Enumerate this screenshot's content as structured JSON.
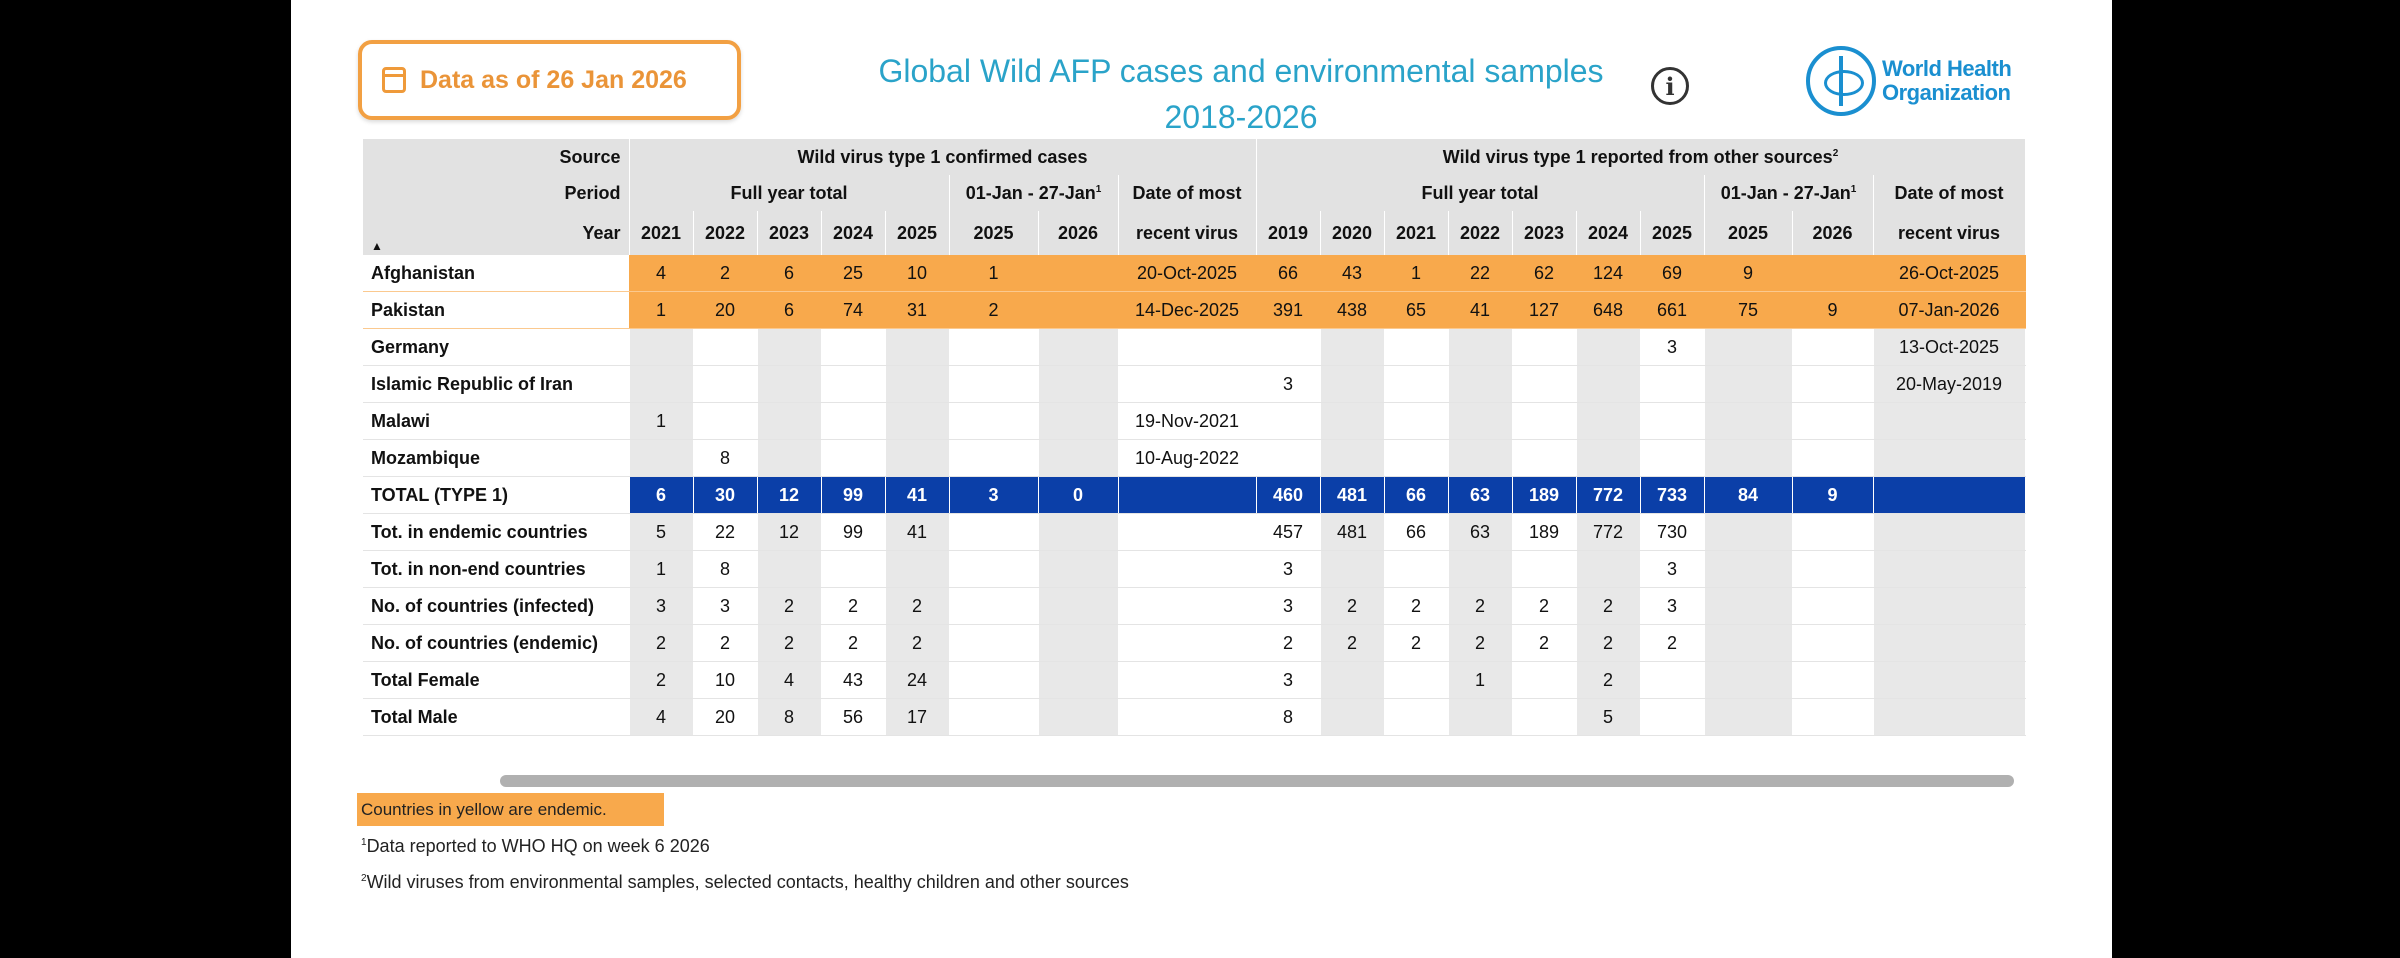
{
  "badge": {
    "icon": "calendar-icon",
    "label": "Data as of 26 Jan 2026"
  },
  "title": {
    "line1": "Global Wild AFP cases and environmental samples",
    "line2": "2018-2026"
  },
  "info_icon": "i",
  "logo": {
    "line1": "World Health",
    "line2": "Organization"
  },
  "header": {
    "source_label": "Source",
    "period_label": "Period",
    "year_label": "Year",
    "group1": "Wild virus type 1 confirmed cases",
    "group2": "Wild virus type 1 reported from other sources",
    "group2_sup": "2",
    "full_year": "Full year total",
    "ytd": "01-Jan - 27-Jan",
    "ytd_sup": "1",
    "date_line1": "Date of most",
    "date_line2": "recent virus",
    "sort_icon": "▲",
    "years": [
      "2021",
      "2022",
      "2023",
      "2024",
      "2025",
      "2025",
      "2026",
      "",
      "2019",
      "2020",
      "2021",
      "2022",
      "2023",
      "2024",
      "2025",
      "2025",
      "2026",
      ""
    ]
  },
  "rows": [
    {
      "label": "Afghanistan",
      "style": "endemic",
      "values": [
        "4",
        "2",
        "6",
        "25",
        "10",
        "1",
        "",
        "20-Oct-2025",
        "66",
        "43",
        "1",
        "22",
        "62",
        "124",
        "69",
        "9",
        "",
        "26-Oct-2025"
      ]
    },
    {
      "label": "Pakistan",
      "style": "endemic",
      "values": [
        "1",
        "20",
        "6",
        "74",
        "31",
        "2",
        "",
        "14-Dec-2025",
        "391",
        "438",
        "65",
        "41",
        "127",
        "648",
        "661",
        "75",
        "9",
        "07-Jan-2026"
      ]
    },
    {
      "label": "Germany",
      "style": "",
      "values": [
        "",
        "",
        "",
        "",
        "",
        "",
        "",
        "",
        "",
        "",
        "",
        "",
        "",
        "",
        "3",
        "",
        "",
        "13-Oct-2025"
      ]
    },
    {
      "label": "Islamic Republic of Iran",
      "style": "",
      "values": [
        "",
        "",
        "",
        "",
        "",
        "",
        "",
        "",
        "3",
        "",
        "",
        "",
        "",
        "",
        "",
        "",
        "",
        "20-May-2019"
      ]
    },
    {
      "label": "Malawi",
      "style": "",
      "values": [
        "1",
        "",
        "",
        "",
        "",
        "",
        "",
        "19-Nov-2021",
        "",
        "",
        "",
        "",
        "",
        "",
        "",
        "",
        "",
        ""
      ]
    },
    {
      "label": "Mozambique",
      "style": "",
      "values": [
        "",
        "8",
        "",
        "",
        "",
        "",
        "",
        "10-Aug-2022",
        "",
        "",
        "",
        "",
        "",
        "",
        "",
        "",
        "",
        ""
      ]
    },
    {
      "label": "TOTAL (TYPE 1)",
      "style": "total",
      "values": [
        "6",
        "30",
        "12",
        "99",
        "41",
        "3",
        "0",
        "",
        "460",
        "481",
        "66",
        "63",
        "189",
        "772",
        "733",
        "84",
        "9",
        ""
      ]
    },
    {
      "label": "Tot. in endemic countries",
      "style": "",
      "values": [
        "5",
        "22",
        "12",
        "99",
        "41",
        "",
        "",
        "",
        "457",
        "481",
        "66",
        "63",
        "189",
        "772",
        "730",
        "",
        "",
        ""
      ]
    },
    {
      "label": "Tot. in non-end countries",
      "style": "",
      "values": [
        "1",
        "8",
        "",
        "",
        "",
        "",
        "",
        "",
        "3",
        "",
        "",
        "",
        "",
        "",
        "3",
        "",
        "",
        ""
      ]
    },
    {
      "label": "No. of countries (infected)",
      "style": "",
      "values": [
        "3",
        "3",
        "2",
        "2",
        "2",
        "",
        "",
        "",
        "3",
        "2",
        "2",
        "2",
        "2",
        "2",
        "3",
        "",
        "",
        ""
      ]
    },
    {
      "label": "No. of countries (endemic)",
      "style": "",
      "values": [
        "2",
        "2",
        "2",
        "2",
        "2",
        "",
        "",
        "",
        "2",
        "2",
        "2",
        "2",
        "2",
        "2",
        "2",
        "",
        "",
        ""
      ]
    },
    {
      "label": "Total Female",
      "style": "",
      "values": [
        "2",
        "10",
        "4",
        "43",
        "24",
        "",
        "",
        "",
        "3",
        "",
        "",
        "1",
        "",
        "2",
        "",
        "",
        "",
        ""
      ]
    },
    {
      "label": "Total Male",
      "style": "",
      "values": [
        "4",
        "20",
        "8",
        "56",
        "17",
        "",
        "",
        "",
        "8",
        "",
        "",
        "",
        "",
        "5",
        "",
        "",
        "",
        ""
      ]
    }
  ],
  "legend": "Countries in yellow are endemic.",
  "footnotes": [
    {
      "sup": "1",
      "text": "Data reported to WHO HQ on week 6 2026"
    },
    {
      "sup": "2",
      "text": "Wild viruses from environmental samples, selected contacts, healthy children and other sources"
    }
  ],
  "colors": {
    "endemic": "#f8a94c",
    "total": "#0b3fa8",
    "title": "#2aa3c9",
    "badge": "#f2a043"
  }
}
